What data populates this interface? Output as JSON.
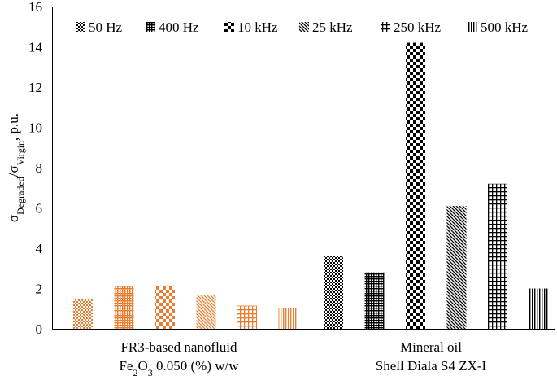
{
  "chart_data": {
    "type": "bar",
    "title": "",
    "ylabel_parts": {
      "sigma": "σ",
      "sub1": "Degraded",
      "slash": "/",
      "sub2": "Virgin",
      "unit": ", p.u."
    },
    "xlabel": "",
    "ylim": [
      0,
      16
    ],
    "yticks": [
      0,
      2,
      4,
      6,
      8,
      10,
      12,
      14,
      16
    ],
    "categories": [
      {
        "line1": "FR3-based nanofluid",
        "line2_parts": [
          "Fe",
          "2",
          "O",
          "3",
          " 0.050 (%) w/w"
        ],
        "color": "#e87d2f"
      },
      {
        "line1": "Mineral oil",
        "line2_parts": [
          "Shell Diala S4 ZX-I"
        ],
        "color": "#000000"
      }
    ],
    "series": [
      {
        "name": "50 Hz",
        "pattern": "checker-fine",
        "values": [
          1.5,
          3.6
        ]
      },
      {
        "name": "400 Hz",
        "pattern": "grid-dense",
        "values": [
          2.1,
          2.8
        ]
      },
      {
        "name": "10 kHz",
        "pattern": "checker-big",
        "values": [
          2.15,
          14.2
        ]
      },
      {
        "name": "25 kHz",
        "pattern": "diagonal",
        "values": [
          1.65,
          6.1
        ]
      },
      {
        "name": "250 kHz",
        "pattern": "grid-wide",
        "values": [
          1.15,
          7.2
        ]
      },
      {
        "name": "500 kHz",
        "pattern": "vertical",
        "values": [
          1.05,
          2.0
        ]
      }
    ],
    "legend_position": "top",
    "grid": false
  }
}
